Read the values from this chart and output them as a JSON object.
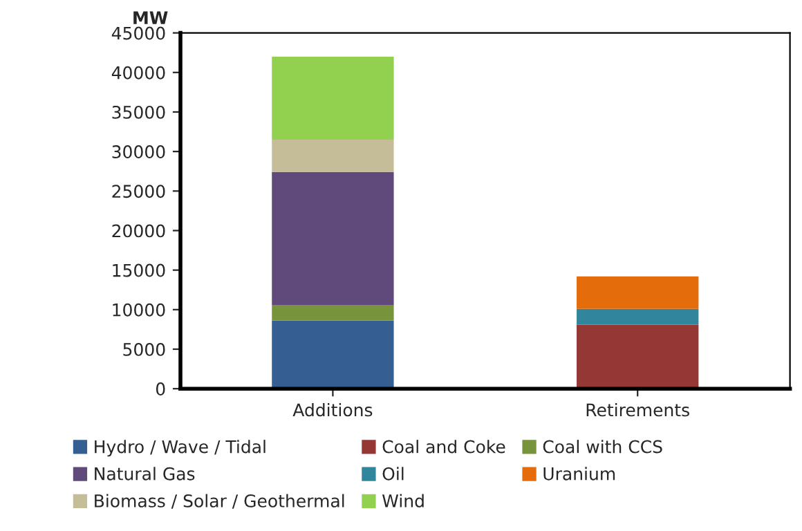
{
  "chart_data": {
    "type": "bar",
    "stacked": true,
    "ylabel": "MW",
    "categories": [
      "Additions",
      "Retirements"
    ],
    "series": [
      {
        "name": "Hydro / Wave / Tidal",
        "color": "#355f93",
        "values": [
          8600,
          0
        ]
      },
      {
        "name": "Coal and Coke",
        "color": "#953735",
        "values": [
          0,
          8100
        ]
      },
      {
        "name": "Coal with CCS",
        "color": "#77933c",
        "values": [
          2000,
          0
        ]
      },
      {
        "name": "Natural Gas",
        "color": "#604a7b",
        "values": [
          16800,
          0
        ]
      },
      {
        "name": "Oil",
        "color": "#31859c",
        "values": [
          0,
          2000
        ]
      },
      {
        "name": "Uranium",
        "color": "#e46c0a",
        "values": [
          0,
          4100
        ]
      },
      {
        "name": "Biomass / Solar / Geothermal",
        "color": "#c4bd97",
        "values": [
          4100,
          0
        ]
      },
      {
        "name": "Wind",
        "color": "#92d050",
        "values": [
          10500,
          0
        ]
      }
    ],
    "ylim": [
      0,
      45000
    ],
    "yticks": [
      0,
      5000,
      10000,
      15000,
      20000,
      25000,
      30000,
      35000,
      40000,
      45000
    ],
    "grid": false,
    "legend": "bottom"
  }
}
